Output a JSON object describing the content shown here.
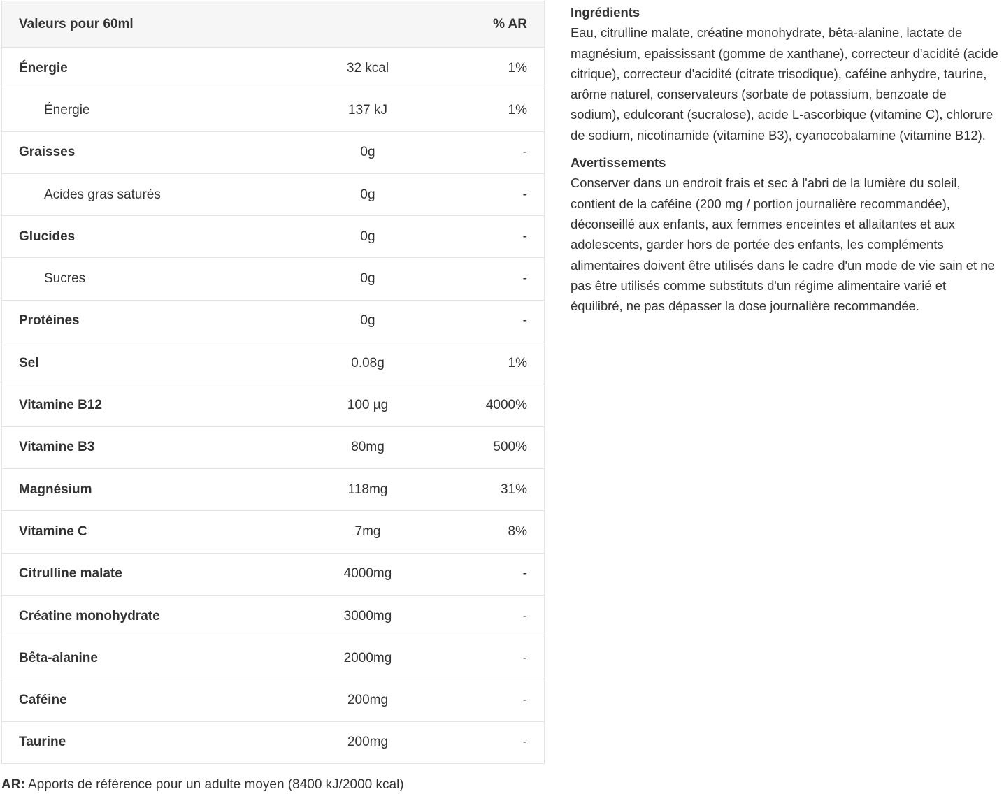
{
  "table": {
    "header": {
      "label": "Valeurs pour 60ml",
      "value": "",
      "ar": "% AR"
    },
    "rows": [
      {
        "label": "Énergie",
        "value": "32 kcal",
        "ar": "1%",
        "sub": false
      },
      {
        "label": "Énergie",
        "value": "137 kJ",
        "ar": "1%",
        "sub": true
      },
      {
        "label": "Graisses",
        "value": "0g",
        "ar": "-",
        "sub": false
      },
      {
        "label": "Acides gras saturés",
        "value": "0g",
        "ar": "-",
        "sub": true
      },
      {
        "label": "Glucides",
        "value": "0g",
        "ar": "-",
        "sub": false
      },
      {
        "label": "Sucres",
        "value": "0g",
        "ar": "-",
        "sub": true
      },
      {
        "label": "Protéines",
        "value": "0g",
        "ar": "-",
        "sub": false
      },
      {
        "label": "Sel",
        "value": "0.08g",
        "ar": "1%",
        "sub": false
      },
      {
        "label": "Vitamine B12",
        "value": "100 µg",
        "ar": "4000%",
        "sub": false
      },
      {
        "label": "Vitamine B3",
        "value": "80mg",
        "ar": "500%",
        "sub": false
      },
      {
        "label": "Magnésium",
        "value": "118mg",
        "ar": "31%",
        "sub": false
      },
      {
        "label": "Vitamine C",
        "value": "7mg",
        "ar": "8%",
        "sub": false
      },
      {
        "label": "Citrulline malate",
        "value": "4000mg",
        "ar": "-",
        "sub": false
      },
      {
        "label": "Créatine monohydrate",
        "value": "3000mg",
        "ar": "-",
        "sub": false
      },
      {
        "label": "Bêta-alanine",
        "value": "2000mg",
        "ar": "-",
        "sub": false
      },
      {
        "label": "Caféine",
        "value": "200mg",
        "ar": "-",
        "sub": false
      },
      {
        "label": "Taurine",
        "value": "200mg",
        "ar": "-",
        "sub": false
      }
    ]
  },
  "footnote": {
    "abbr": "AR:",
    "text": " Apports de référence pour un adulte moyen (8400 kJ/2000 kcal)"
  },
  "ingredients": {
    "title": "Ingrédients",
    "text": "Eau, citrulline malate, créatine monohydrate, bêta-alanine, lactate de magnésium, epaississant (gomme de xanthane), correcteur d'acidité (acide citrique), correcteur d'acidité (citrate trisodique), caféine anhydre, taurine, arôme naturel, conservateurs (sorbate de potassium, benzoate de sodium), edulcorant (sucralose), acide L-ascorbique (vitamine C), chlorure de sodium, nicotinamide (vitamine B3), cyanocobalamine (vitamine B12)."
  },
  "warnings": {
    "title": "Avertissements",
    "text": "Conserver dans un endroit frais et sec à l'abri de la lumière du soleil, contient de la caféine (200 mg / portion journalière recommandée), déconseillé aux enfants, aux femmes enceintes et allaitantes et aux adolescents, garder hors de portée des enfants, les compléments alimentaires doivent être utilisés dans le cadre d'un mode de vie sain et ne pas être utilisés comme substituts d'un régime alimentaire varié et équilibré, ne pas dépasser la dose journalière recommandée."
  }
}
